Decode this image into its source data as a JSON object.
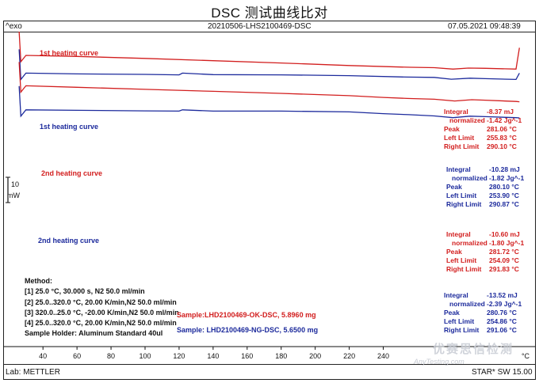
{
  "title": "DSC 测试曲线比对",
  "header": {
    "left": "^exo",
    "center": "20210506-LHS2100469-DSC",
    "right": "07.05.2021 09:48:39"
  },
  "yscale": {
    "value": "10",
    "unit": "mW"
  },
  "curve_labels": {
    "c1": "1st heating curve",
    "c2": "1st heating curve",
    "c3": "2nd heating curve",
    "c4": "2nd heating curve"
  },
  "results": [
    {
      "color": "red",
      "rows": [
        [
          "Integral",
          "-8.37 mJ"
        ],
        [
          "normalized",
          "-1.42 Jg^-1"
        ],
        [
          "Peak",
          "281.06 °C"
        ],
        [
          "Left Limit",
          "255.83 °C"
        ],
        [
          "Right Limit",
          "290.10 °C"
        ]
      ]
    },
    {
      "color": "blue",
      "rows": [
        [
          "Integral",
          "-10.28 mJ"
        ],
        [
          "normalized",
          "-1.82 Jg^-1"
        ],
        [
          "Peak",
          "280.10 °C"
        ],
        [
          "Left Limit",
          "253.90 °C"
        ],
        [
          "Right Limit",
          "290.87 °C"
        ]
      ]
    },
    {
      "color": "red",
      "rows": [
        [
          "Integral",
          "-10.60 mJ"
        ],
        [
          "normalized",
          "-1.80 Jg^-1"
        ],
        [
          "Peak",
          "281.72 °C"
        ],
        [
          "Left Limit",
          "254.09 °C"
        ],
        [
          "Right Limit",
          "291.83 °C"
        ]
      ]
    },
    {
      "color": "blue",
      "rows": [
        [
          "Integral",
          "-13.52 mJ"
        ],
        [
          "normalized",
          "-2.39 Jg^-1"
        ],
        [
          "Peak",
          "280.76 °C"
        ],
        [
          "Left Limit",
          "254.86 °C"
        ],
        [
          "Right Limit",
          "291.06 °C"
        ]
      ]
    }
  ],
  "method": {
    "title": "Method:",
    "lines": [
      "[1] 25.0 °C, 30.000 s,  N2 50.0 ml/min",
      "[2] 25.0..320.0 °C, 20.00 K/min,N2 50.0 ml/min",
      "[3] 320.0..25.0 °C, -20.00 K/min,N2 50.0 ml/min",
      "[4] 25.0..320.0 °C, 20.00 K/min,N2 50.0 ml/min"
    ],
    "holder": "Sample Holder: Aluminum Standard 40ul"
  },
  "samples": {
    "ok": "Sample:LHD2100469-OK-DSC, 5.8960 mg",
    "ng": "Sample: LHD2100469-NG-DSC, 5.6500 mg"
  },
  "x_unit": "°C",
  "footer": {
    "left": "Lab: METTLER",
    "right": "STAR* SW 15.00"
  },
  "watermark": {
    "text": "优赛思信检测",
    "sub": "AnyTesting.com"
  },
  "colors": {
    "red": "#d21e1e",
    "blue": "#1c2a9c"
  },
  "chart_data": {
    "type": "line",
    "title": "DSC 测试曲线比对",
    "xlabel": "°C",
    "ylabel": "mW",
    "xlim": [
      25,
      325
    ],
    "xticks": [
      40,
      60,
      80,
      100,
      120,
      140,
      160,
      180,
      200,
      220,
      240
    ],
    "series": [
      {
        "name": "1st heating curve",
        "sample": "OK",
        "color": "#d21e1e",
        "x": [
          30,
          60,
          100,
          140,
          180,
          220,
          250,
          256,
          270,
          281,
          290,
          300,
          318,
          320
        ],
        "y": [
          0,
          -0.4,
          -1.2,
          -2.1,
          -3.0,
          -4.0,
          -4.6,
          -4.7,
          -4.85,
          -5.4,
          -5.0,
          -5.1,
          -5.4,
          3.0
        ]
      },
      {
        "name": "1st heating curve",
        "sample": "NG",
        "color": "#1c2a9c",
        "x": [
          30,
          60,
          100,
          120,
          122,
          140,
          180,
          220,
          250,
          254,
          270,
          280,
          291,
          300,
          318,
          320
        ],
        "y": [
          -7.0,
          -7.3,
          -7.5,
          -7.7,
          -7.0,
          -7.6,
          -7.7,
          -8.0,
          -8.5,
          -8.55,
          -8.7,
          -9.4,
          -9.0,
          -9.2,
          -9.5,
          -7.0
        ]
      },
      {
        "name": "2nd heating curve",
        "sample": "OK",
        "color": "#d21e1e",
        "x": [
          30,
          60,
          100,
          140,
          180,
          220,
          240,
          254,
          270,
          282,
          292,
          300,
          318,
          320
        ],
        "y": [
          -12.0,
          -12.6,
          -13.4,
          -14.2,
          -15.0,
          -15.9,
          -16.6,
          -17.0,
          -17.3,
          -18.0,
          -17.5,
          -17.7,
          -18.2,
          -18.3
        ]
      },
      {
        "name": "2nd heating curve",
        "sample": "NG",
        "color": "#1c2a9c",
        "x": [
          30,
          60,
          100,
          120,
          122,
          140,
          180,
          220,
          240,
          255,
          270,
          281,
          291,
          300,
          318,
          320
        ],
        "y": [
          -21.5,
          -21.7,
          -21.9,
          -22.0,
          -21.5,
          -22.0,
          -22.0,
          -22.3,
          -23.0,
          -23.4,
          -23.9,
          -24.6,
          -24.0,
          -24.2,
          -24.6,
          -24.7
        ]
      }
    ]
  }
}
